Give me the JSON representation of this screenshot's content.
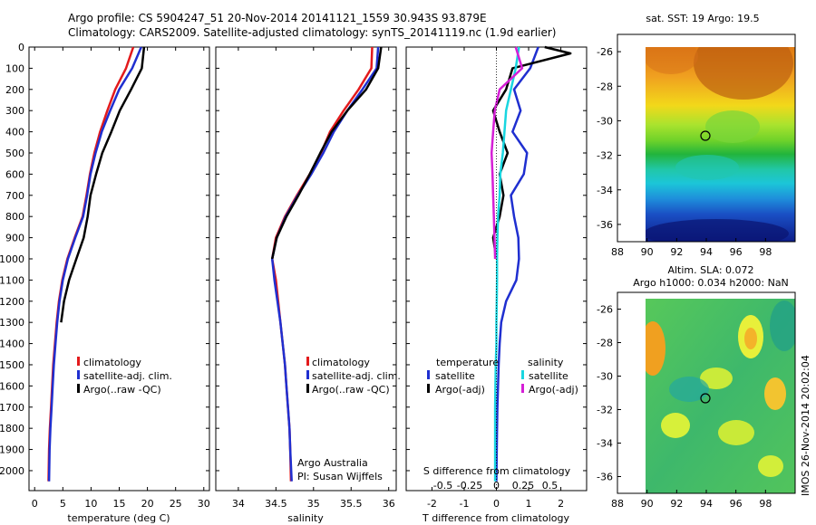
{
  "header": {
    "line1": "Argo profile: CS 5904247_51 20-Nov-2014 20141121_1559 30.943S 93.879E",
    "line2": "Climatology: CARS2009. Satellite-adjusted climatology: synTS_20141119.nc (1.9d earlier)"
  },
  "depth_ticks": [
    0,
    100,
    200,
    300,
    400,
    500,
    600,
    700,
    800,
    900,
    1000,
    1100,
    1200,
    1300,
    1400,
    1500,
    1600,
    1700,
    1800,
    1900,
    2000
  ],
  "chart_data": [
    {
      "id": "temperature",
      "type": "line",
      "xlabel": "temperature (deg C)",
      "xlim": [
        -1,
        31
      ],
      "xticks": [
        "0",
        "5",
        "10",
        "15",
        "20",
        "25",
        "30"
      ],
      "xtick_values": [
        0,
        5,
        10,
        15,
        20,
        25,
        30
      ],
      "ylim": [
        0,
        2060
      ],
      "legend": [
        "climatology",
        "satellite-adj. clim.",
        "Argo(..raw -QC)"
      ],
      "series": [
        {
          "name": "climatology",
          "color": "#e31a1c",
          "x": [
            17.5,
            16.2,
            14.3,
            12.9,
            11.6,
            10.6,
            9.8,
            9.2,
            8.5,
            7.1,
            5.8,
            4.9,
            4.3,
            3.9,
            3.6,
            3.3,
            3.1,
            2.9,
            2.7,
            2.55,
            2.45
          ],
          "y": [
            0,
            100,
            200,
            300,
            400,
            500,
            600,
            700,
            800,
            900,
            1000,
            1100,
            1200,
            1300,
            1400,
            1500,
            1600,
            1700,
            1800,
            1900,
            2050
          ]
        },
        {
          "name": "satellite-adj. clim.",
          "color": "#1f2fd0",
          "x": [
            18.9,
            17.3,
            15.0,
            13.4,
            11.9,
            10.8,
            9.9,
            9.3,
            8.6,
            7.2,
            5.9,
            5.0,
            4.4,
            4.0,
            3.7,
            3.4,
            3.2,
            3.0,
            2.8,
            2.65,
            2.55
          ],
          "y": [
            0,
            100,
            200,
            300,
            400,
            500,
            600,
            700,
            800,
            900,
            1000,
            1100,
            1200,
            1300,
            1400,
            1500,
            1600,
            1700,
            1800,
            1900,
            2050
          ]
        },
        {
          "name": "Argo(..raw -QC)",
          "color": "#000000",
          "x": [
            19.4,
            19.0,
            17.1,
            15.1,
            13.6,
            12.0,
            10.9,
            9.9,
            9.4,
            8.7,
            7.4,
            6.1,
            5.2,
            4.7
          ],
          "y": [
            0,
            100,
            200,
            300,
            400,
            500,
            600,
            700,
            800,
            900,
            1000,
            1100,
            1200,
            1300
          ]
        }
      ]
    },
    {
      "id": "salinity",
      "type": "line",
      "xlabel": "salinity",
      "xlim": [
        33.7,
        36.1
      ],
      "xticks": [
        "34",
        "34.5",
        "35",
        "35.5",
        "36"
      ],
      "xtick_values": [
        34,
        34.5,
        35,
        35.5,
        36
      ],
      "ylim": [
        0,
        2060
      ],
      "legend": [
        "climatology",
        "satellite-adj. clim.",
        "Argo(..raw -QC)"
      ],
      "annotation": [
        "Argo Australia",
        "PI: Susan Wijffels"
      ],
      "series": [
        {
          "name": "climatology",
          "color": "#e31a1c",
          "x": [
            35.78,
            35.77,
            35.6,
            35.4,
            35.22,
            35.1,
            34.95,
            34.78,
            34.62,
            34.5,
            34.45,
            34.5,
            34.53,
            34.56,
            34.59,
            34.62,
            34.64,
            34.66,
            34.68,
            34.69,
            34.7
          ],
          "y": [
            0,
            100,
            200,
            300,
            400,
            500,
            600,
            700,
            800,
            900,
            1000,
            1100,
            1200,
            1300,
            1400,
            1500,
            1600,
            1700,
            1800,
            1900,
            2050
          ]
        },
        {
          "name": "satellite-adj. clim.",
          "color": "#1f2fd0",
          "x": [
            35.86,
            35.84,
            35.65,
            35.45,
            35.27,
            35.13,
            34.97,
            34.79,
            34.63,
            34.51,
            34.45,
            34.48,
            34.52,
            34.56,
            34.59,
            34.62,
            34.64,
            34.66,
            34.68,
            34.69,
            34.71
          ],
          "y": [
            0,
            100,
            200,
            300,
            400,
            500,
            600,
            700,
            800,
            900,
            1000,
            1100,
            1200,
            1300,
            1400,
            1500,
            1600,
            1700,
            1800,
            1900,
            2050
          ]
        },
        {
          "name": "Argo(..raw -QC)",
          "color": "#000000",
          "x": [
            35.9,
            35.86,
            35.7,
            35.45,
            35.24,
            35.09,
            34.95,
            34.8,
            34.64,
            34.51,
            34.45
          ],
          "y": [
            0,
            100,
            200,
            300,
            400,
            500,
            600,
            700,
            800,
            900,
            1000
          ]
        }
      ]
    },
    {
      "id": "differences",
      "type": "line",
      "xlabel": "T difference from climatology",
      "xlim": [
        -2.8,
        2.8
      ],
      "xticks": [
        "-2",
        "-1",
        "0",
        "1",
        "2"
      ],
      "xtick_values": [
        -2,
        -1,
        0,
        1,
        2
      ],
      "top_label": "S difference from climatology",
      "top_ticks": [
        "-0.5",
        "-0.25",
        "0",
        "0.25",
        "0.5"
      ],
      "top_tick_values": [
        -0.5,
        -0.25,
        0,
        0.25,
        0.5
      ],
      "ylim": [
        0,
        2060
      ],
      "legend_temperature_title": "temperature",
      "legend_salinity_title": "salinity",
      "legend_temperature": [
        "satellite",
        "Argo(-adj)"
      ],
      "legend_salinity": [
        "satellite",
        "Argo(-adj)"
      ],
      "series": [
        {
          "name": "temperature satellite",
          "color": "#1f2fd0",
          "x": [
            1.3,
            1.05,
            0.55,
            0.75,
            0.5,
            0.95,
            0.85,
            0.45,
            0.55,
            0.68,
            0.7,
            0.62,
            0.3,
            0.15,
            0.1,
            0.07,
            0.05,
            0.03,
            0.02,
            0.01,
            0.0
          ],
          "y": [
            0,
            100,
            200,
            300,
            400,
            500,
            600,
            700,
            800,
            900,
            1000,
            1100,
            1200,
            1300,
            1400,
            1500,
            1600,
            1700,
            1800,
            1900,
            2050
          ]
        },
        {
          "name": "temperature Argo(-adj)",
          "color": "#000000",
          "x": [
            1.5,
            2.3,
            0.5,
            0.3,
            -0.1,
            0.1,
            0.35,
            0.1,
            0.22,
            0.1,
            -0.1,
            0.0
          ],
          "y": [
            0,
            30,
            100,
            200,
            300,
            400,
            500,
            600,
            700,
            800,
            900,
            1000
          ]
        },
        {
          "name": "salinity satellite",
          "color": "#19d6e0",
          "x": [
            0.7,
            0.6,
            0.45,
            0.3,
            0.25,
            0.2,
            0.12,
            0.1,
            0.05,
            0.03,
            0.02,
            0.02,
            0.01,
            0.0,
            0.0,
            -0.02,
            -0.03,
            -0.04,
            -0.04,
            -0.04,
            -0.04
          ],
          "y": [
            0,
            100,
            200,
            300,
            400,
            500,
            600,
            700,
            800,
            900,
            1000,
            1100,
            1200,
            1300,
            1400,
            1500,
            1600,
            1700,
            1800,
            1900,
            2050
          ]
        },
        {
          "name": "salinity Argo(-adj)",
          "color": "#d51fd6",
          "x": [
            0.6,
            0.8,
            0.1,
            -0.05,
            -0.1,
            -0.15,
            -0.12,
            -0.1,
            -0.08,
            -0.06,
            -0.04
          ],
          "y": [
            0,
            100,
            200,
            300,
            400,
            500,
            600,
            700,
            800,
            900,
            1000
          ]
        }
      ]
    },
    {
      "id": "sst_map",
      "type": "heatmap",
      "title": "sat. SST: 19 Argo: 19.5",
      "xticks": [
        "88",
        "90",
        "92",
        "94",
        "96",
        "98"
      ],
      "yticks": [
        "-26",
        "-28",
        "-30",
        "-32",
        "-34",
        "-36"
      ],
      "xlim": [
        88,
        100
      ],
      "ylim": [
        -37,
        -25
      ],
      "argo_position": [
        93.88,
        -30.94
      ]
    },
    {
      "id": "sla_map",
      "type": "heatmap",
      "title_lines": [
        "Altim. SLA: 0.072",
        "Argo h1000: 0.034 h2000: NaN"
      ],
      "xticks": [
        "88",
        "90",
        "92",
        "94",
        "96",
        "98"
      ],
      "yticks": [
        "-26",
        "-28",
        "-30",
        "-32",
        "-34",
        "-36"
      ],
      "xlim": [
        88,
        100
      ],
      "ylim": [
        -37,
        -25
      ],
      "argo_position": [
        93.88,
        -30.94
      ],
      "side_label": "IMOS 26-Nov-2014 20:02:04"
    }
  ]
}
